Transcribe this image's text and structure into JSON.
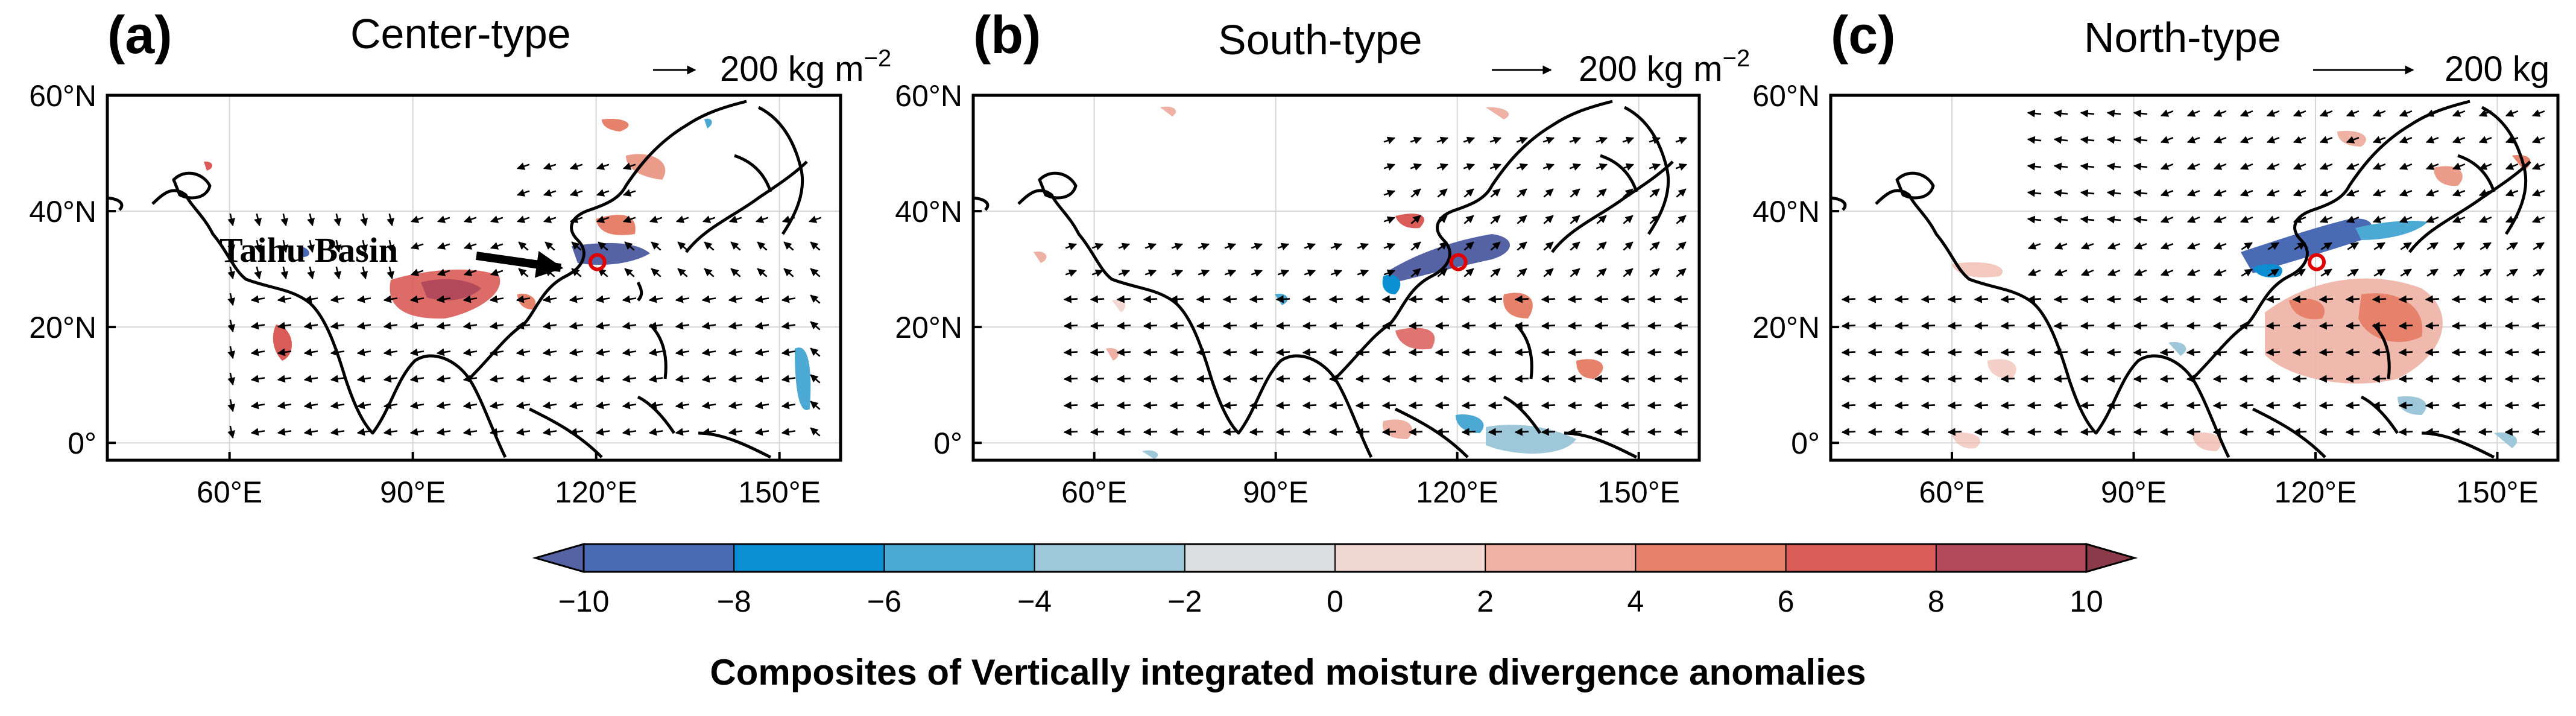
{
  "figure": {
    "colorbar_title": "Composites of Vertically integrated moisture divergence anomalies",
    "colorbar_ticks": [
      "−10",
      "−8",
      "−6",
      "−4",
      "−2",
      "0",
      "2",
      "4",
      "6",
      "8",
      "10"
    ],
    "colorbar_colors": [
      "#5562a3",
      "#4a6ab3",
      "#0b8fd2",
      "#4ba9d3",
      "#9ec8da",
      "#dcdfe2",
      "#f1d8d3",
      "#eeb1a4",
      "#e6826b",
      "#d95c58",
      "#b24a5c",
      "#8b3a4a"
    ],
    "axis": {
      "lat_ticks": [
        "60°N",
        "40°N",
        "20°N",
        "0°"
      ],
      "lon_ticks": [
        "60°E",
        "90°E",
        "120°E",
        "150°E"
      ]
    },
    "panels": [
      {
        "label": "(a)",
        "title": "Center-type",
        "ref_vector": "200 kg m",
        "ref_exp": "−2",
        "annotation": "Taihu Basin"
      },
      {
        "label": "(b)",
        "title": "South-type",
        "ref_vector": "200 kg m",
        "ref_exp": "−2"
      },
      {
        "label": "(c)",
        "title": "North-type",
        "ref_vector": "200 kg"
      }
    ]
  },
  "map_data": {
    "extent": {
      "lon": [
        40,
        160
      ],
      "lat": [
        -3,
        60
      ]
    },
    "lat_values": [
      60,
      40,
      20,
      0
    ],
    "lon_values": [
      60,
      90,
      120,
      150
    ],
    "marker": {
      "name": "Taihu Basin",
      "lon": 120.2,
      "lat": 31.2
    }
  }
}
